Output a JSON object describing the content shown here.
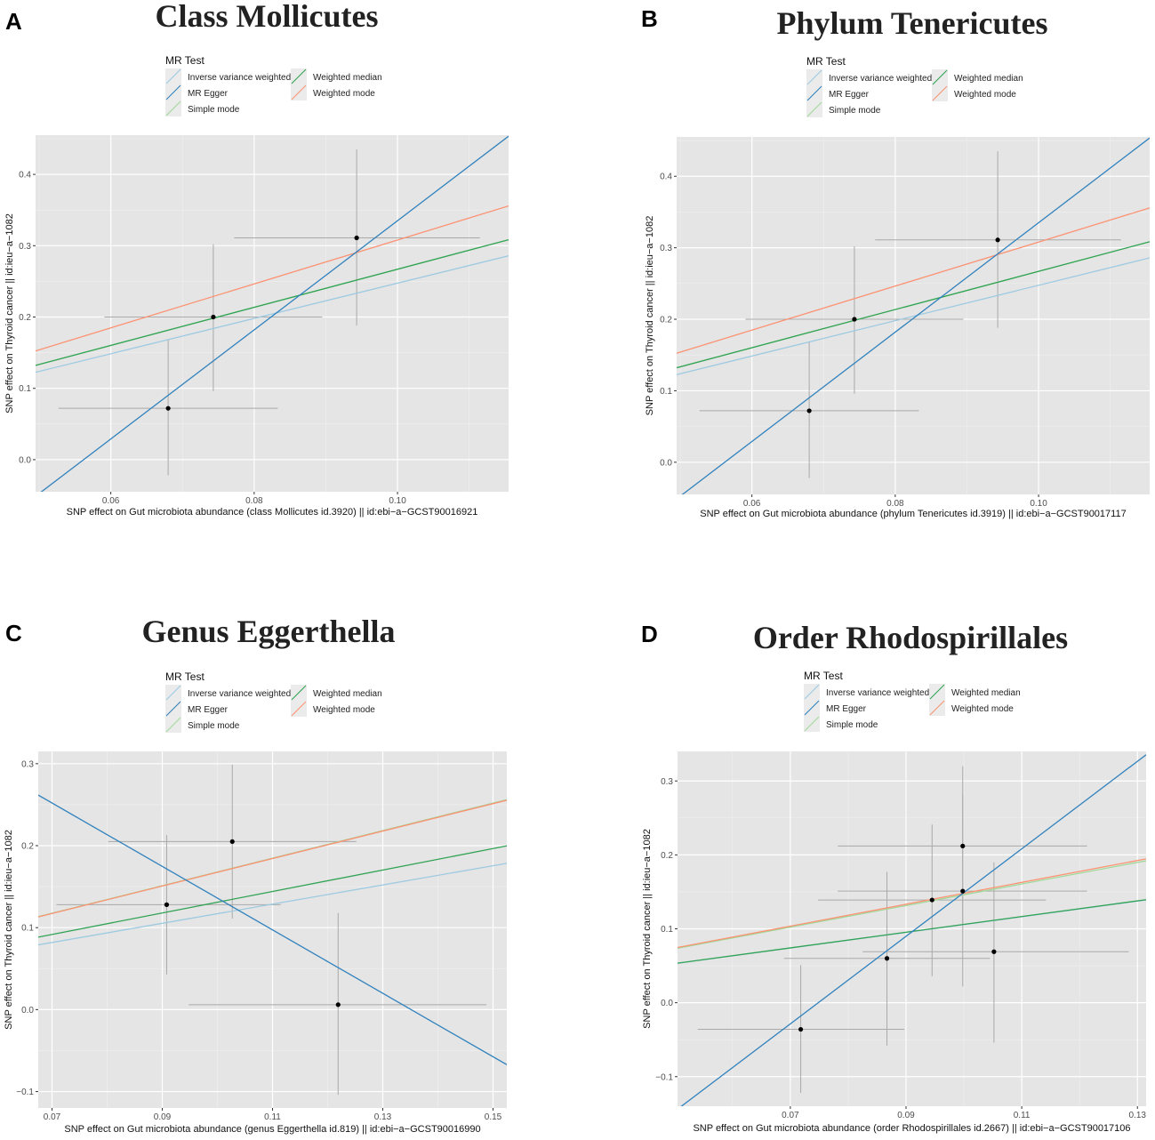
{
  "colors": {
    "panel_bg": "#e5e5e5",
    "grid_major": "#ffffff",
    "grid_minor": "#f0f0f0",
    "point": "#000000",
    "errorbar": "#a9a9a9",
    "legend_key_bg": "#ebebeb"
  },
  "methods": [
    {
      "key": "ivw",
      "label": "Inverse variance weighted",
      "color": "#9ecae1"
    },
    {
      "key": "egger",
      "label": "MR Egger",
      "color": "#3182bd"
    },
    {
      "key": "simple",
      "label": "Simple mode",
      "color": "#a1d99b"
    },
    {
      "key": "wmedian",
      "label": "Weighted median",
      "color": "#31a354"
    },
    {
      "key": "wmode",
      "label": "Weighted mode",
      "color": "#fc9272"
    }
  ],
  "chart_data": [
    {
      "type": "scatter",
      "letter": "A",
      "title": "Class Mollicutes",
      "legend_title": "MR Test",
      "xlabel": "SNP effect on Gut microbiota abundance (class Mollicutes id.3920) || id:ebi−a−GCST90016921",
      "ylabel": "SNP effect on Thyroid cancer || id:ieu−a−1082",
      "xlim": [
        0.0495,
        0.1155
      ],
      "ylim": [
        -0.045,
        0.455
      ],
      "xticks": [
        {
          "v": 0.06,
          "label": "0.06"
        },
        {
          "v": 0.08,
          "label": "0.08"
        },
        {
          "v": 0.1,
          "label": "0.10"
        }
      ],
      "yticks": [
        {
          "v": 0.0,
          "label": "0.0"
        },
        {
          "v": 0.1,
          "label": "0.1"
        },
        {
          "v": 0.2,
          "label": "0.2"
        },
        {
          "v": 0.3,
          "label": "0.3"
        },
        {
          "v": 0.4,
          "label": "0.4"
        }
      ],
      "points": [
        {
          "x": 0.068,
          "y": 0.072,
          "xlo": 0.0527,
          "xhi": 0.0833,
          "ylo": -0.022,
          "yhi": 0.168
        },
        {
          "x": 0.0743,
          "y": 0.2,
          "xlo": 0.0591,
          "xhi": 0.0895,
          "ylo": 0.096,
          "yhi": 0.302
        },
        {
          "x": 0.0943,
          "y": 0.311,
          "xlo": 0.0772,
          "xhi": 0.1115,
          "ylo": 0.188,
          "yhi": 0.435
        }
      ],
      "lines": {
        "ivw": {
          "slope": 2.475,
          "intercept": 0.0
        },
        "egger": {
          "slope": 7.65,
          "intercept": -0.43
        },
        "simple": {
          "slope": 2.67,
          "intercept": 0.0
        },
        "wmedian": {
          "slope": 2.67,
          "intercept": 0.0
        },
        "wmode": {
          "slope": 3.08,
          "intercept": 0.0
        }
      },
      "line_order": [
        "simple",
        "ivw",
        "wmedian",
        "wmode",
        "egger"
      ]
    },
    {
      "type": "scatter",
      "letter": "B",
      "title": "Phylum Tenericutes",
      "legend_title": "MR Test",
      "xlabel": "SNP effect on Gut microbiota abundance (phylum Tenericutes id.3919) || id:ebi−a−GCST90017117",
      "ylabel": "SNP effect on Thyroid cancer || id:ieu−a−1082",
      "xlim": [
        0.0495,
        0.1155
      ],
      "ylim": [
        -0.045,
        0.455
      ],
      "xticks": [
        {
          "v": 0.06,
          "label": "0.06"
        },
        {
          "v": 0.08,
          "label": "0.08"
        },
        {
          "v": 0.1,
          "label": "0.10"
        }
      ],
      "yticks": [
        {
          "v": 0.0,
          "label": "0.0"
        },
        {
          "v": 0.1,
          "label": "0.1"
        },
        {
          "v": 0.2,
          "label": "0.2"
        },
        {
          "v": 0.3,
          "label": "0.3"
        },
        {
          "v": 0.4,
          "label": "0.4"
        }
      ],
      "points": [
        {
          "x": 0.068,
          "y": 0.072,
          "xlo": 0.0527,
          "xhi": 0.0833,
          "ylo": -0.022,
          "yhi": 0.168
        },
        {
          "x": 0.0743,
          "y": 0.2,
          "xlo": 0.0591,
          "xhi": 0.0895,
          "ylo": 0.096,
          "yhi": 0.302
        },
        {
          "x": 0.0943,
          "y": 0.311,
          "xlo": 0.0772,
          "xhi": 0.1115,
          "ylo": 0.188,
          "yhi": 0.435
        }
      ],
      "lines": {
        "ivw": {
          "slope": 2.475,
          "intercept": 0.0
        },
        "egger": {
          "slope": 7.65,
          "intercept": -0.43
        },
        "simple": {
          "slope": 2.67,
          "intercept": 0.0
        },
        "wmedian": {
          "slope": 2.67,
          "intercept": 0.0
        },
        "wmode": {
          "slope": 3.08,
          "intercept": 0.0
        }
      },
      "line_order": [
        "simple",
        "ivw",
        "wmedian",
        "wmode",
        "egger"
      ]
    },
    {
      "type": "scatter",
      "letter": "C",
      "title": "Genus Eggerthella",
      "legend_title": "MR Test",
      "xlabel": "SNP effect on Gut microbiota abundance (genus Eggerthella id.819) || id:ebi−a−GCST90016990",
      "ylabel": "SNP effect on Thyroid cancer || id:ieu−a−1082",
      "xlim": [
        0.0675,
        0.1525
      ],
      "ylim": [
        -0.12,
        0.315
      ],
      "xticks": [
        {
          "v": 0.07,
          "label": "0.07"
        },
        {
          "v": 0.09,
          "label": "0.09"
        },
        {
          "v": 0.11,
          "label": "0.11"
        },
        {
          "v": 0.13,
          "label": "0.13"
        },
        {
          "v": 0.15,
          "label": "0.15"
        }
      ],
      "yticks": [
        {
          "v": -0.1,
          "label": "−0.1"
        },
        {
          "v": 0.0,
          "label": "0.0"
        },
        {
          "v": 0.1,
          "label": "0.1"
        },
        {
          "v": 0.2,
          "label": "0.2"
        },
        {
          "v": 0.3,
          "label": "0.3"
        }
      ],
      "points": [
        {
          "x": 0.0908,
          "y": 0.128,
          "xlo": 0.0708,
          "xhi": 0.1115,
          "ylo": 0.043,
          "yhi": 0.213
        },
        {
          "x": 0.1027,
          "y": 0.205,
          "xlo": 0.0802,
          "xhi": 0.1252,
          "ylo": 0.111,
          "yhi": 0.299
        },
        {
          "x": 0.1219,
          "y": 0.006,
          "xlo": 0.0948,
          "xhi": 0.1488,
          "ylo": -0.104,
          "yhi": 0.118
        }
      ],
      "lines": {
        "ivw": {
          "slope": 1.17,
          "intercept": 0.0
        },
        "egger": {
          "slope": -3.87,
          "intercept": 0.523
        },
        "simple": {
          "slope": 1.68,
          "intercept": 0.0
        },
        "wmedian": {
          "slope": 1.31,
          "intercept": 0.0
        },
        "wmode": {
          "slope": 1.675,
          "intercept": 0.0
        }
      },
      "line_order": [
        "ivw",
        "wmedian",
        "simple",
        "wmode",
        "egger"
      ]
    },
    {
      "type": "scatter",
      "letter": "D",
      "title": "Order Rhodospirillales",
      "legend_title": "MR Test",
      "xlabel": "SNP effect on Gut microbiota abundance (order Rhodospirillales id.2667) || id:ebi−a−GCST90017106",
      "ylabel": "SNP effect on Thyroid cancer || id:ieu−a−1082",
      "xlim": [
        0.0505,
        0.1315
      ],
      "ylim": [
        -0.14,
        0.34
      ],
      "xticks": [
        {
          "v": 0.07,
          "label": "0.07"
        },
        {
          "v": 0.09,
          "label": "0.09"
        },
        {
          "v": 0.11,
          "label": "0.11"
        },
        {
          "v": 0.13,
          "label": "0.13"
        }
      ],
      "yticks": [
        {
          "v": -0.1,
          "label": "−0.1"
        },
        {
          "v": 0.0,
          "label": "0.0"
        },
        {
          "v": 0.1,
          "label": "0.1"
        },
        {
          "v": 0.2,
          "label": "0.2"
        },
        {
          "v": 0.3,
          "label": "0.3"
        }
      ],
      "points": [
        {
          "x": 0.0718,
          "y": -0.036,
          "xlo": 0.054,
          "xhi": 0.0897,
          "ylo": -0.122,
          "yhi": 0.051
        },
        {
          "x": 0.0867,
          "y": 0.06,
          "xlo": 0.0689,
          "xhi": 0.1045,
          "ylo": -0.058,
          "yhi": 0.177
        },
        {
          "x": 0.0945,
          "y": 0.139,
          "xlo": 0.0748,
          "xhi": 0.1142,
          "ylo": 0.036,
          "yhi": 0.241
        },
        {
          "x": 0.0998,
          "y": 0.151,
          "xlo": 0.0782,
          "xhi": 0.1213,
          "ylo": 0.022,
          "yhi": 0.281
        },
        {
          "x": 0.0998,
          "y": 0.212,
          "xlo": 0.0782,
          "xhi": 0.1213,
          "ylo": 0.105,
          "yhi": 0.32
        },
        {
          "x": 0.1052,
          "y": 0.069,
          "xlo": 0.0825,
          "xhi": 0.1285,
          "ylo": -0.054,
          "yhi": 0.19
        }
      ],
      "lines": {
        "ivw": {
          "slope": 1.057,
          "intercept": 0.0
        },
        "egger": {
          "slope": 5.92,
          "intercept": -0.443
        },
        "simple": {
          "slope": 1.46,
          "intercept": 0.0
        },
        "wmedian": {
          "slope": 1.06,
          "intercept": 0.0
        },
        "wmode": {
          "slope": 1.48,
          "intercept": 0.0
        }
      },
      "line_order": [
        "ivw",
        "wmedian",
        "simple",
        "wmode",
        "egger"
      ]
    }
  ]
}
